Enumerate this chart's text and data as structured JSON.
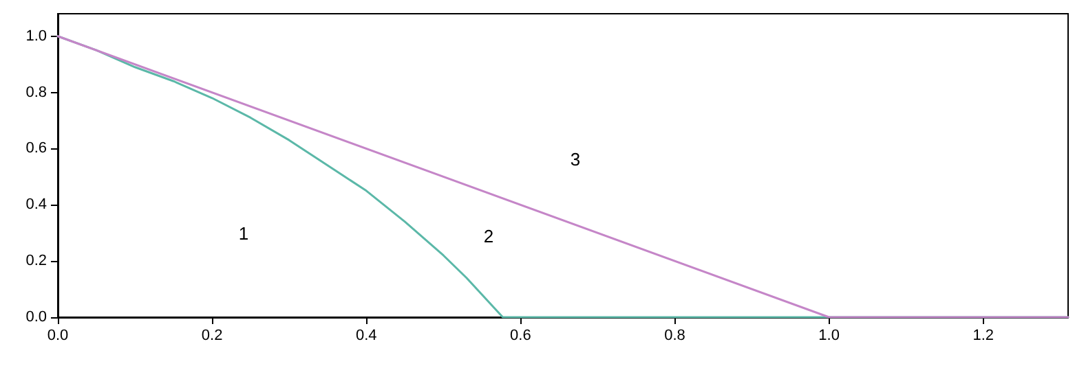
{
  "chart_data": {
    "type": "line",
    "x": [
      0,
      0.05,
      0.1,
      0.15,
      0.2,
      0.25,
      0.3,
      0.35,
      0.4,
      0.45,
      0.5,
      0.53,
      0.577,
      1.31
    ],
    "series": [
      {
        "color": "#5bb8a8",
        "values": [
          1,
          0.95,
          0.89,
          0.84,
          0.78,
          0.71,
          0.63,
          0.54,
          0.45,
          0.34,
          0.22,
          0.14,
          0,
          0
        ]
      },
      {
        "color": "#c586c8",
        "x": [
          0,
          1,
          1.31
        ],
        "values": [
          1,
          0,
          0
        ]
      }
    ],
    "xlim": [
      0,
      1.31
    ],
    "ylim": [
      0,
      1.08
    ],
    "xticks": [
      {
        "value": 0,
        "label": "0.0"
      },
      {
        "value": 0.2,
        "label": "0.2"
      },
      {
        "value": 0.4,
        "label": "0.4"
      },
      {
        "value": 0.6,
        "label": "0.6"
      },
      {
        "value": 0.8,
        "label": "0.8"
      },
      {
        "value": 1,
        "label": "1.0"
      },
      {
        "value": 1.2,
        "label": "1.2"
      }
    ],
    "yticks": [
      {
        "value": 0,
        "label": "0.0"
      },
      {
        "value": 0.2,
        "label": "0.2"
      },
      {
        "value": 0.4,
        "label": "0.4"
      },
      {
        "value": 0.6,
        "label": "0.6"
      },
      {
        "value": 0.8,
        "label": "0.8"
      },
      {
        "value": 1,
        "label": "1.0"
      }
    ],
    "annotations": [
      "1",
      "2",
      "3"
    ],
    "grid": false,
    "marker": "none",
    "line_style": "solid"
  }
}
